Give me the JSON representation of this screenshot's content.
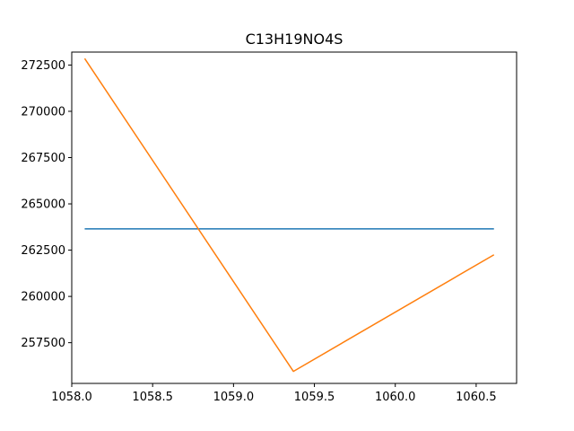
{
  "chart_data": {
    "type": "line",
    "title": "C13H19NO4S",
    "xlabel": "",
    "ylabel": "",
    "xlim": [
      1058.0,
      1060.75
    ],
    "ylim": [
      255300,
      273200
    ],
    "xticks": [
      "1058.0",
      "1058.5",
      "1059.0",
      "1059.5",
      "1060.0",
      "1060.5"
    ],
    "yticks": [
      "257500",
      "260000",
      "262500",
      "265000",
      "267500",
      "270000",
      "272500"
    ],
    "grid": false,
    "legend": "none",
    "series": [
      {
        "color": "#1f77b4",
        "x": [
          1058.08,
          1060.61
        ],
        "y": [
          263650,
          263650
        ]
      },
      {
        "color": "#ff7f0e",
        "x": [
          1058.08,
          1059.37,
          1060.61
        ],
        "y": [
          272850,
          255950,
          262250
        ]
      }
    ]
  }
}
